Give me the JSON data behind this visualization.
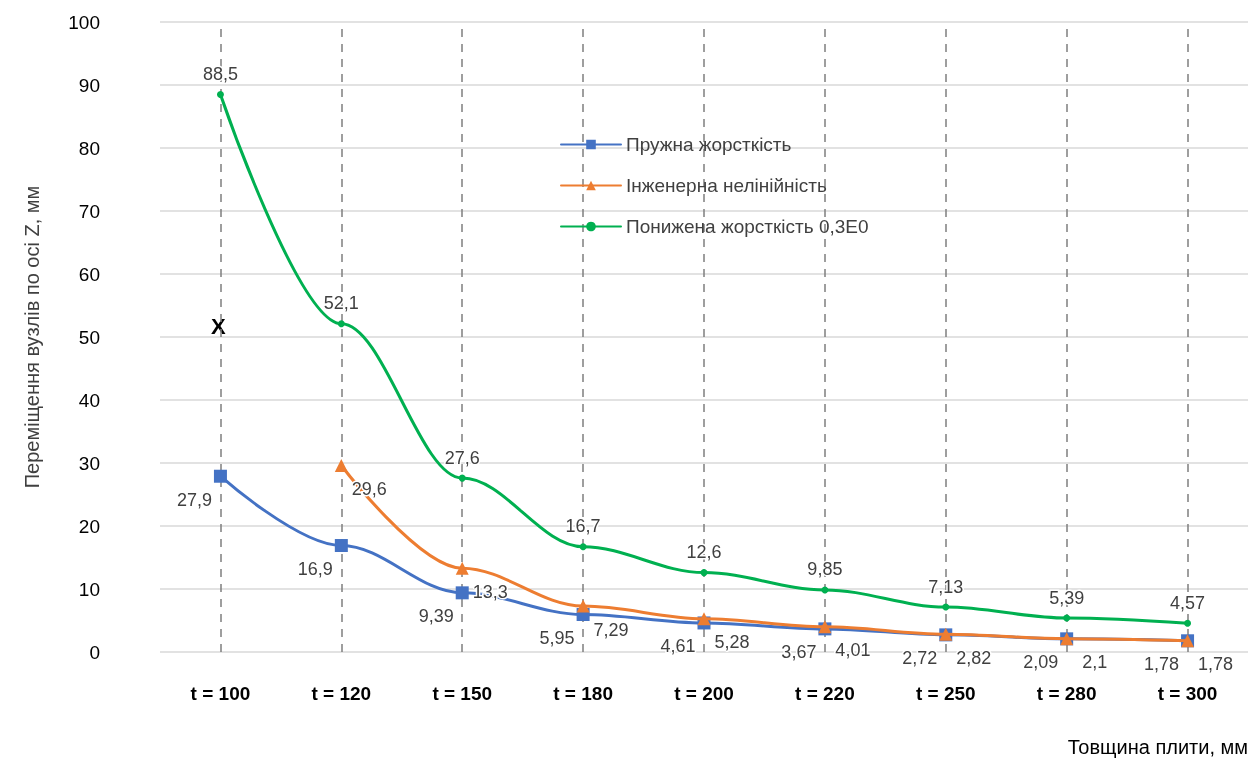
{
  "chart_data": {
    "type": "line",
    "xlabel": "Товщина плити, мм",
    "ylabel": "Переміщення вузлів по осі Z, мм",
    "categories": [
      "t = 100",
      "t = 120",
      "t = 150",
      "t = 180",
      "t = 200",
      "t = 220",
      "t = 250",
      "t = 280",
      "t = 300"
    ],
    "series": [
      {
        "name": "Пружна жорсткість",
        "color": "#4472c4",
        "marker": "square",
        "values": [
          27.9,
          16.9,
          9.39,
          5.95,
          4.61,
          3.67,
          2.72,
          2.09,
          1.78
        ],
        "value_labels": [
          "27,9",
          "16,9",
          "9,39",
          "5,95",
          "4,61",
          "3,67",
          "2,72",
          "2,09",
          "1,78"
        ]
      },
      {
        "name": "Інженерна нелінійність",
        "color": "#ed7d31",
        "marker": "triangle",
        "values": [
          null,
          29.6,
          13.3,
          7.29,
          5.28,
          4.01,
          2.82,
          2.1,
          1.78
        ],
        "value_labels": [
          null,
          "29,6",
          "13,3",
          "7,29",
          "5,28",
          "4,01",
          "2,82",
          "2,1",
          "1,78"
        ]
      },
      {
        "name": "Понижена жорсткість 0,3E0",
        "color": "#00b050",
        "marker": "circle",
        "values": [
          88.5,
          52.1,
          27.6,
          16.7,
          12.6,
          9.85,
          7.13,
          5.39,
          4.57
        ],
        "value_labels": [
          "88,5",
          "52,1",
          "27,6",
          "16,7",
          "12,6",
          "9,85",
          "7,13",
          "5,39",
          "4,57"
        ]
      }
    ],
    "annotations": [
      "X"
    ],
    "ylim": [
      0,
      100
    ],
    "yticks": [
      0,
      10,
      20,
      30,
      40,
      50,
      60,
      70,
      80,
      90,
      100
    ],
    "grid": true,
    "legend": "top",
    "line_style": "solid"
  }
}
